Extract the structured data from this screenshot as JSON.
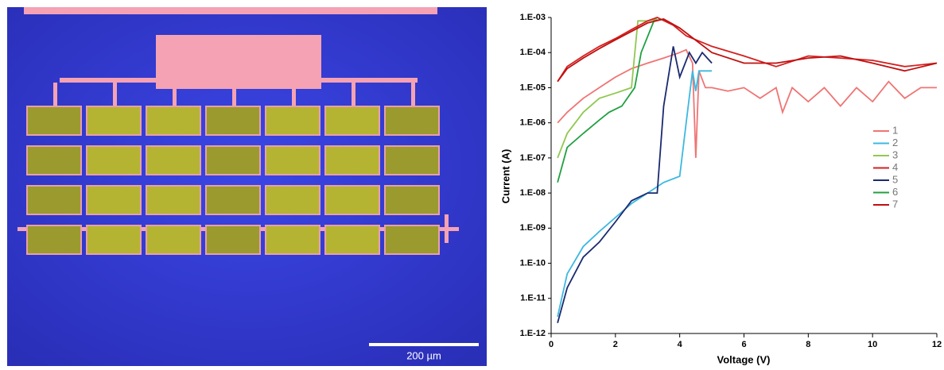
{
  "photo": {
    "scale_bar": "200 µm"
  },
  "chart_data": {
    "type": "line",
    "xlabel": "Voltage (V)",
    "ylabel": "Current (A)",
    "log_y": true,
    "legend": "right",
    "xlim": [
      0,
      12
    ],
    "xticks": [
      0,
      2,
      4,
      6,
      8,
      10,
      12
    ],
    "ylim": [
      1e-12,
      0.001
    ],
    "yticks": [
      {
        "value": 0.001,
        "label": "1.E-03"
      },
      {
        "value": 0.0001,
        "label": "1.E-04"
      },
      {
        "value": 1e-05,
        "label": "1.E-05"
      },
      {
        "value": 1e-06,
        "label": "1.E-06"
      },
      {
        "value": 1e-07,
        "label": "1.E-07"
      },
      {
        "value": 1e-08,
        "label": "1.E-08"
      },
      {
        "value": 1e-09,
        "label": "1.E-09"
      },
      {
        "value": 1e-10,
        "label": "1.E-10"
      },
      {
        "value": 1e-11,
        "label": "1.E-11"
      },
      {
        "value": 1e-12,
        "label": "1.E-12"
      }
    ],
    "series": [
      {
        "name": "1",
        "color": "#f07474",
        "x": [
          0.2,
          0.5,
          1,
          1.5,
          2,
          2.5,
          3,
          3.5,
          4,
          4.2,
          4.4,
          4.5,
          4.6,
          4.8,
          5,
          5.5,
          6,
          6.5,
          7,
          7.2,
          7.5,
          8,
          8.5,
          9,
          9.5,
          10,
          10.5,
          11,
          11.5,
          12
        ],
        "values": [
          1e-06,
          2e-06,
          5e-06,
          1e-05,
          2e-05,
          3.5e-05,
          5e-05,
          7e-05,
          0.0001,
          0.00012,
          5e-05,
          1e-07,
          3e-05,
          1e-05,
          1e-05,
          8e-06,
          1e-05,
          5e-06,
          1e-05,
          2e-06,
          1e-05,
          4e-06,
          1e-05,
          3e-06,
          1e-05,
          4e-06,
          1.5e-05,
          5e-06,
          1e-05,
          1e-05
        ]
      },
      {
        "name": "2",
        "color": "#3cb8e0",
        "x": [
          0.2,
          0.5,
          1,
          1.5,
          2,
          2.5,
          3,
          3.5,
          4,
          4.2,
          4.4,
          4.5,
          4.6,
          4.8,
          5
        ],
        "values": [
          3e-12,
          5e-11,
          3e-10,
          8e-10,
          2e-09,
          5e-09,
          1e-08,
          2e-08,
          3e-08,
          1e-06,
          3e-05,
          8e-06,
          3e-05,
          3e-05,
          3e-05
        ]
      },
      {
        "name": "3",
        "color": "#90c850",
        "x": [
          0.2,
          0.5,
          1,
          1.5,
          2,
          2.5,
          2.7,
          3,
          3.3
        ],
        "values": [
          1e-07,
          5e-07,
          2e-06,
          5e-06,
          7e-06,
          1e-05,
          0.0008,
          0.0008,
          0.0009
        ]
      },
      {
        "name": "4",
        "color": "#d42020",
        "x": [
          0.2,
          0.5,
          1,
          1.5,
          2,
          2.5,
          3,
          3.3,
          3.8,
          4.2,
          5,
          6,
          7,
          8,
          9,
          10,
          11,
          12
        ],
        "values": [
          1.5e-05,
          4e-05,
          8e-05,
          0.00015,
          0.00025,
          0.00045,
          0.0008,
          0.001,
          0.0006,
          0.0003,
          0.00015,
          8e-05,
          4e-05,
          8e-05,
          7e-05,
          6e-05,
          4e-05,
          5e-05
        ]
      },
      {
        "name": "5",
        "color": "#1a2a70",
        "x": [
          0.2,
          0.5,
          1,
          1.5,
          2,
          2.5,
          3,
          3.3,
          3.5,
          3.8,
          4,
          4.3,
          4.5,
          4.7,
          5
        ],
        "values": [
          2e-12,
          2e-11,
          1.5e-10,
          4e-10,
          1.5e-09,
          6e-09,
          1e-08,
          1e-08,
          3e-06,
          0.00015,
          2e-05,
          0.0001,
          5e-05,
          0.0001,
          5e-05
        ]
      },
      {
        "name": "6",
        "color": "#20a040",
        "x": [
          0.2,
          0.5,
          1,
          1.5,
          1.8,
          2.2,
          2.6,
          2.8,
          3.2,
          3.5
        ],
        "values": [
          2e-08,
          2e-07,
          5e-07,
          1.2e-06,
          2e-06,
          3e-06,
          1e-05,
          0.0001,
          0.0008,
          0.0009
        ]
      },
      {
        "name": "7",
        "color": "#c01010",
        "x": [
          0.2,
          0.5,
          1,
          1.5,
          2,
          2.5,
          3,
          3.5,
          4,
          5,
          6,
          7,
          8,
          9,
          10,
          11,
          12
        ],
        "values": [
          1.5e-05,
          3.5e-05,
          7e-05,
          0.00013,
          0.00023,
          0.0004,
          0.0007,
          0.0009,
          0.0005,
          0.0001,
          5e-05,
          5e-05,
          7e-05,
          8e-05,
          5e-05,
          3e-05,
          5e-05
        ]
      }
    ]
  }
}
